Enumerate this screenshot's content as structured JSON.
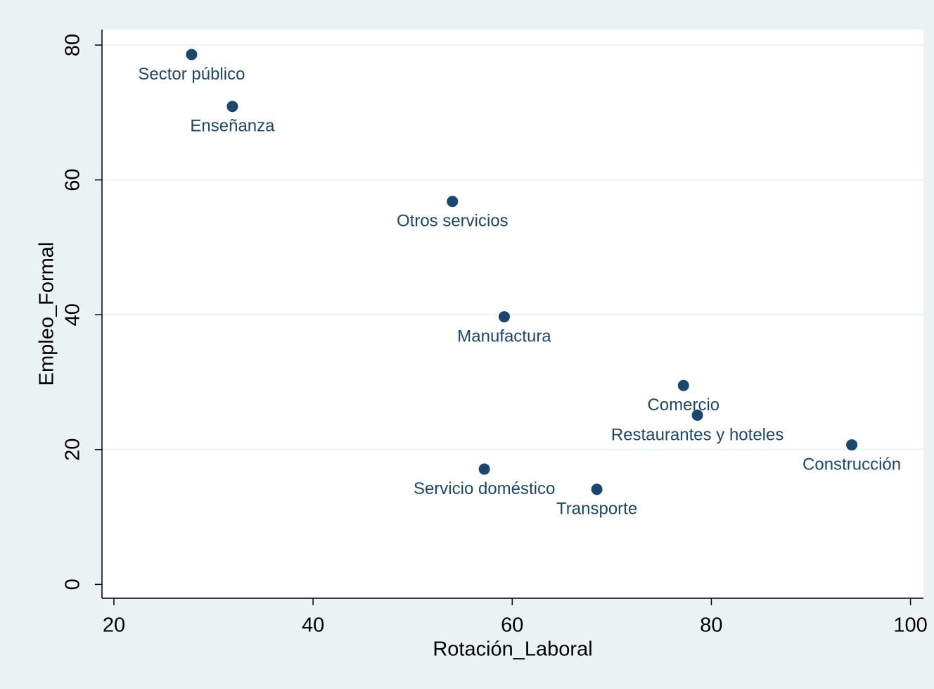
{
  "chart_data": {
    "type": "scatter",
    "x_label": "Rotación_Laboral",
    "y_label": "Empleo_Formal",
    "labels": [
      "Sector público",
      "Enseñanza",
      "Otros servicios",
      "Manufactura",
      "Comercio",
      "Restaurantes y hoteles",
      "Construcción",
      "Servicio doméstico",
      "Transporte"
    ],
    "x": [
      27.8,
      31.9,
      54.0,
      59.2,
      77.2,
      78.6,
      94.1,
      57.2,
      68.5
    ],
    "values": [
      78.6,
      70.9,
      56.8,
      39.7,
      29.5,
      25.1,
      20.7,
      17.1,
      14.1
    ],
    "color": "#1a476f",
    "xlim": [
      18.8,
      101.3
    ],
    "xticks": [
      20,
      40,
      60,
      80,
      100
    ],
    "ylim": [
      -2.05,
      82.3
    ],
    "yticks": [
      0,
      20,
      40,
      60,
      80
    ],
    "grid": true
  }
}
